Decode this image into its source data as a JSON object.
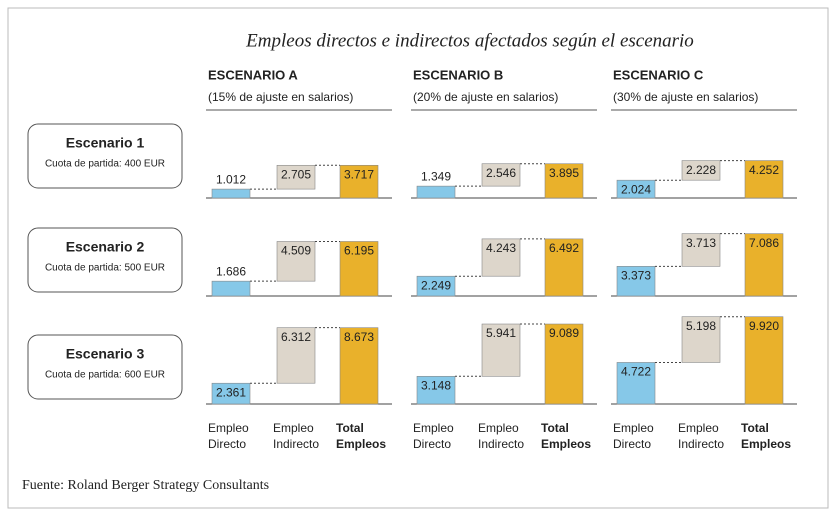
{
  "title": "Empleos directos e indirectos afectados según el escenario",
  "columns": [
    {
      "title": "ESCENARIO A",
      "subtitle": "(15% de ajuste en salarios)",
      "categories": [
        "Empleo Directo",
        "Empleo Indirecto",
        "Total Empleos"
      ]
    },
    {
      "title": "ESCENARIO B",
      "subtitle": "(20% de ajuste en salarios)",
      "categories": [
        "Empleo Directo",
        "Empleo Indirecto",
        "Total Empleos"
      ]
    },
    {
      "title": "ESCENARIO C",
      "subtitle": "(30% de ajuste en salarios)",
      "categories": [
        "Empleo Directo",
        "Empleo Indirecto",
        "Total Empleos"
      ]
    }
  ],
  "rows": [
    {
      "title": "Escenario 1",
      "subtitle": "Cuota de partida: 400 EUR"
    },
    {
      "title": "Escenario 2",
      "subtitle": "Cuota de partida: 500 EUR"
    },
    {
      "title": "Escenario 3",
      "subtitle": "Cuota de partida: 600 EUR"
    }
  ],
  "colors": [
    "#86c8e8",
    "#ddd6cb",
    "#e9b12b"
  ],
  "chart_data": [
    {
      "type": "waterfall",
      "ylim": [
        0,
        10000
      ],
      "values": [
        1012,
        2705,
        3717
      ],
      "value_labels": [
        "1.012",
        "2.705",
        "3.717"
      ]
    },
    {
      "type": "waterfall",
      "ylim": [
        0,
        10000
      ],
      "values": [
        1349,
        2546,
        3895
      ],
      "value_labels": [
        "1.349",
        "2.546",
        "3.895"
      ]
    },
    {
      "type": "waterfall",
      "ylim": [
        0,
        10000
      ],
      "values": [
        2024,
        2228,
        4252
      ],
      "value_labels": [
        "2.024",
        "2.228",
        "4.252"
      ]
    },
    {
      "type": "waterfall",
      "ylim": [
        0,
        10000
      ],
      "values": [
        1686,
        4509,
        6195
      ],
      "value_labels": [
        "1.686",
        "4.509",
        "6.195"
      ]
    },
    {
      "type": "waterfall",
      "ylim": [
        0,
        10000
      ],
      "values": [
        2249,
        4243,
        6492
      ],
      "value_labels": [
        "2.249",
        "4.243",
        "6.492"
      ]
    },
    {
      "type": "waterfall",
      "ylim": [
        0,
        10000
      ],
      "values": [
        3373,
        3713,
        7086
      ],
      "value_labels": [
        "3.373",
        "3.713",
        "7.086"
      ]
    },
    {
      "type": "waterfall",
      "ylim": [
        0,
        10000
      ],
      "values": [
        2361,
        6312,
        8673
      ],
      "value_labels": [
        "2.361",
        "6.312",
        "8.673"
      ]
    },
    {
      "type": "waterfall",
      "ylim": [
        0,
        10000
      ],
      "values": [
        3148,
        5941,
        9089
      ],
      "value_labels": [
        "3.148",
        "5.941",
        "9.089"
      ]
    },
    {
      "type": "waterfall",
      "ylim": [
        0,
        10000
      ],
      "values": [
        4722,
        5198,
        9920
      ],
      "value_labels": [
        "4.722",
        "5.198",
        "9.920"
      ]
    }
  ],
  "source": "Fuente: Roland Berger Strategy Consultants"
}
